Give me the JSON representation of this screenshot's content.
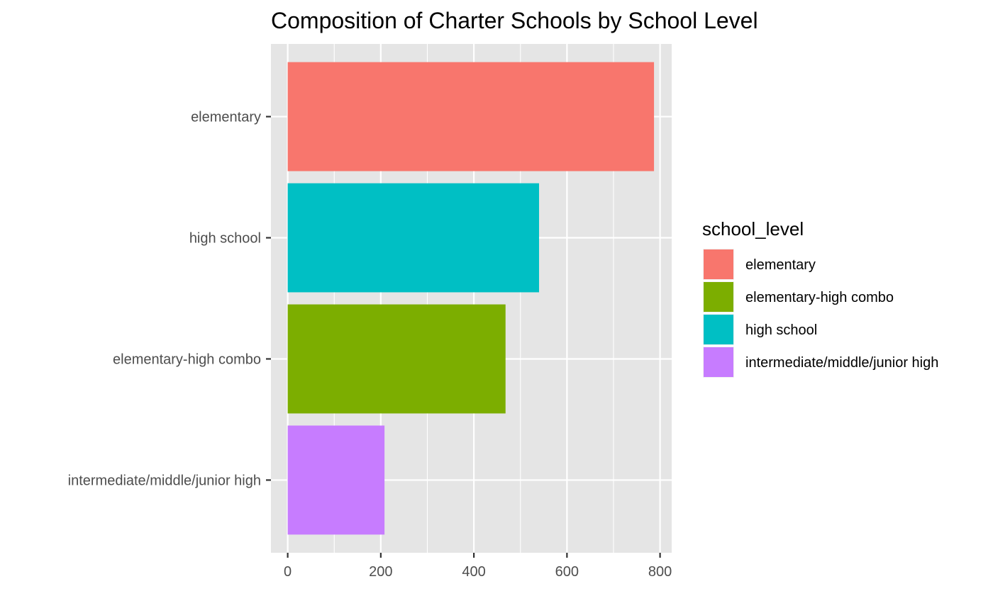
{
  "chart_data": {
    "type": "bar",
    "orientation": "horizontal",
    "title": "Composition of Charter Schools by School Level",
    "xlabel": "",
    "ylabel": "",
    "categories": [
      "elementary",
      "high school",
      "elementary-high combo",
      "intermediate/middle/junior high"
    ],
    "values": [
      787,
      540,
      468,
      208
    ],
    "colors": [
      "#F8766D",
      "#00BFC4",
      "#7CAE00",
      "#C77CFF"
    ],
    "xlim": [
      -36,
      825
    ],
    "xticks": [
      0,
      200,
      400,
      600,
      800
    ],
    "xtick_labels": [
      "0",
      "200",
      "400",
      "600",
      "800"
    ],
    "grid": true,
    "panel_background": "#EBEBEB",
    "legend": {
      "title": "school_level",
      "position": "right",
      "entries": [
        {
          "label": "elementary",
          "color": "#F8766D"
        },
        {
          "label": "elementary-high combo",
          "color": "#7CAE00"
        },
        {
          "label": "high school",
          "color": "#00BFC4"
        },
        {
          "label": "intermediate/middle/junior high",
          "color": "#C77CFF"
        }
      ]
    }
  }
}
